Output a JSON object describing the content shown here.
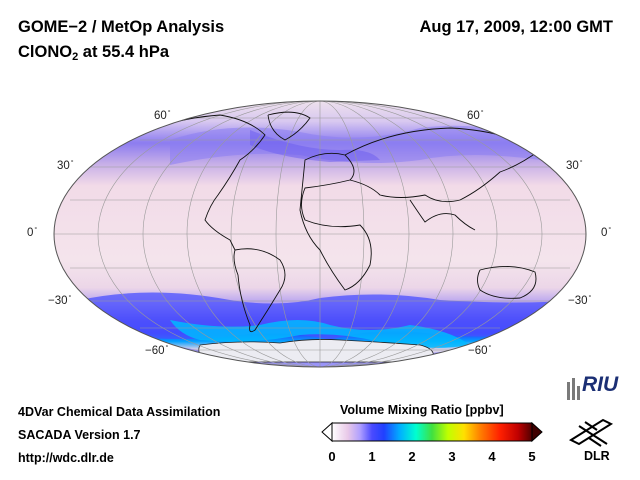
{
  "header": {
    "title": "GOME−2 / MetOp Analysis",
    "species_prefix": "ClONO",
    "species_subscript": "2",
    "species_suffix": " at 55.4 hPa",
    "datetime": "Aug 17, 2009, 12:00 GMT"
  },
  "map": {
    "projection": "Mollweide",
    "lat_labels_left": [
      "60",
      "30",
      "0",
      "−30",
      "−60"
    ],
    "lat_labels_right": [
      "60",
      "30",
      "0",
      "−30",
      "−60"
    ],
    "degree_symbol": "°"
  },
  "colorbar": {
    "title": "Volume Mixing Ratio [ppbv]",
    "ticks": [
      "0",
      "1",
      "2",
      "3",
      "4",
      "5"
    ],
    "colors": [
      "#ffffff",
      "#e8c8e8",
      "#b0a0ff",
      "#5a5aff",
      "#2040ff",
      "#00b0ff",
      "#00ffcc",
      "#40e040",
      "#c0ff00",
      "#ffe000",
      "#ff8000",
      "#ff2000",
      "#c00000",
      "#400000"
    ]
  },
  "footer": {
    "line1": "4DVar Chemical Data Assimilation",
    "line2": "SACADA Version 1.7",
    "line3": "http://wdc.dlr.de"
  },
  "logos": {
    "riu_text": "RIU",
    "dlr_text": "DLR"
  }
}
